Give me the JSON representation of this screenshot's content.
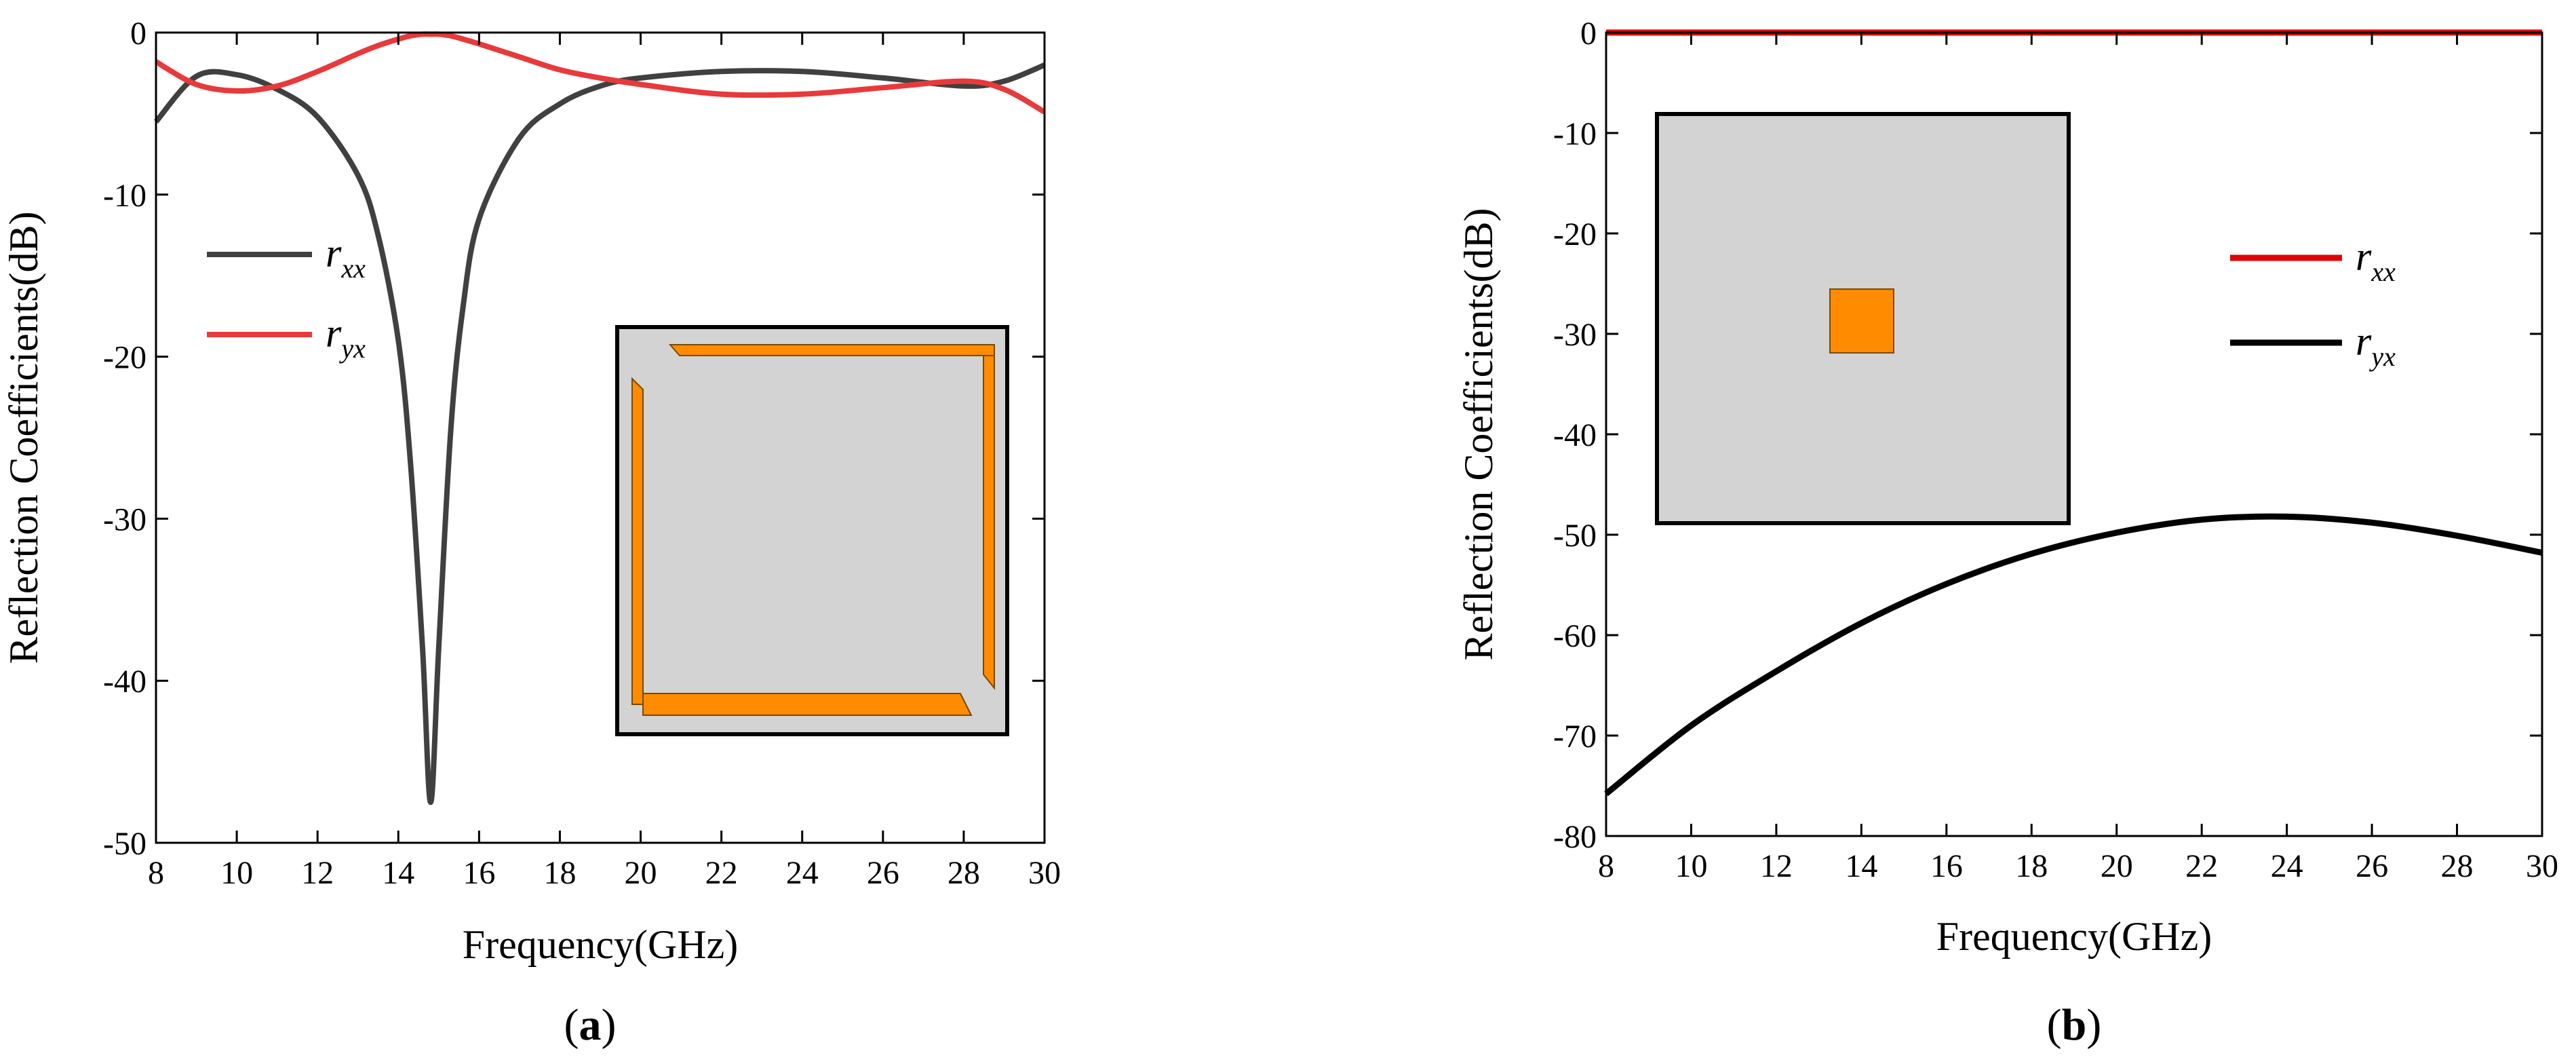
{
  "chart_data": [
    {
      "type": "line",
      "panel_label": "a",
      "xlabel": "Frequency(GHz)",
      "ylabel": "Reflection Coefficients(dB)",
      "xlim": [
        8,
        30
      ],
      "ylim": [
        -50,
        0
      ],
      "xticks": [
        8,
        10,
        12,
        14,
        16,
        18,
        20,
        22,
        24,
        26,
        28,
        30
      ],
      "yticks": [
        0,
        -10,
        -20,
        -30,
        -40,
        -50
      ],
      "grid": false,
      "legend_position": "upper-left",
      "x": [
        8,
        9,
        10,
        11,
        12,
        13,
        13.5,
        14,
        14.3,
        14.6,
        14.8,
        15.0,
        15.3,
        15.6,
        16,
        17,
        18,
        19,
        20,
        22,
        24,
        26,
        28,
        29,
        30
      ],
      "series": [
        {
          "name": "r_xx",
          "label_main": "r",
          "label_sub": "xx",
          "color": "#404040",
          "values": [
            -5.5,
            -2.7,
            -2.6,
            -3.5,
            -5.2,
            -8.8,
            -12.5,
            -19.0,
            -26.5,
            -38.0,
            -47.5,
            -38.0,
            -24.5,
            -17.0,
            -11.5,
            -6.5,
            -4.4,
            -3.3,
            -2.8,
            -2.4,
            -2.4,
            -2.8,
            -3.3,
            -3.0,
            -2.0
          ]
        },
        {
          "name": "r_yx",
          "label_main": "r",
          "label_sub": "yx",
          "color": "#e8393b",
          "values": [
            -1.8,
            -3.2,
            -3.6,
            -3.3,
            -2.4,
            -1.3,
            -0.8,
            -0.4,
            -0.2,
            -0.1,
            -0.1,
            -0.1,
            -0.2,
            -0.4,
            -0.7,
            -1.5,
            -2.3,
            -2.8,
            -3.2,
            -3.8,
            -3.8,
            -3.4,
            -3.0,
            -3.5,
            -4.9
          ]
        }
      ],
      "inset": {
        "description_colors": {
          "substrate": "#d3d3d3",
          "patch": "#ff8c00",
          "border": "#000000"
        }
      }
    },
    {
      "type": "line",
      "panel_label": "b",
      "xlabel": "Frequency(GHz)",
      "ylabel": "Reflection Coefficients(dB)",
      "xlim": [
        8,
        30
      ],
      "ylim": [
        -80,
        0
      ],
      "xticks": [
        8,
        10,
        12,
        14,
        16,
        18,
        20,
        22,
        24,
        26,
        28,
        30
      ],
      "yticks": [
        0,
        -10,
        -20,
        -30,
        -40,
        -50,
        -60,
        -70,
        -80
      ],
      "grid": false,
      "legend_position": "right",
      "x": [
        8,
        10,
        12,
        14,
        16,
        18,
        20,
        22,
        24,
        26,
        28,
        30
      ],
      "series": [
        {
          "name": "r_xx",
          "label_main": "r",
          "label_sub": "xx",
          "color": "#e00000",
          "values": [
            0,
            0,
            0,
            0,
            0,
            0,
            0,
            0,
            0,
            0,
            0,
            0
          ]
        },
        {
          "name": "r_yx",
          "label_main": "r",
          "label_sub": "yx",
          "color": "#000000",
          "values": [
            -75.8,
            -69.0,
            -63.6,
            -58.8,
            -54.9,
            -51.9,
            -49.8,
            -48.5,
            -48.2,
            -48.8,
            -50.1,
            -51.8
          ]
        }
      ],
      "inset": {
        "description_colors": {
          "substrate": "#d3d3d3",
          "patch": "#ff8c00",
          "border": "#000000"
        }
      }
    }
  ]
}
